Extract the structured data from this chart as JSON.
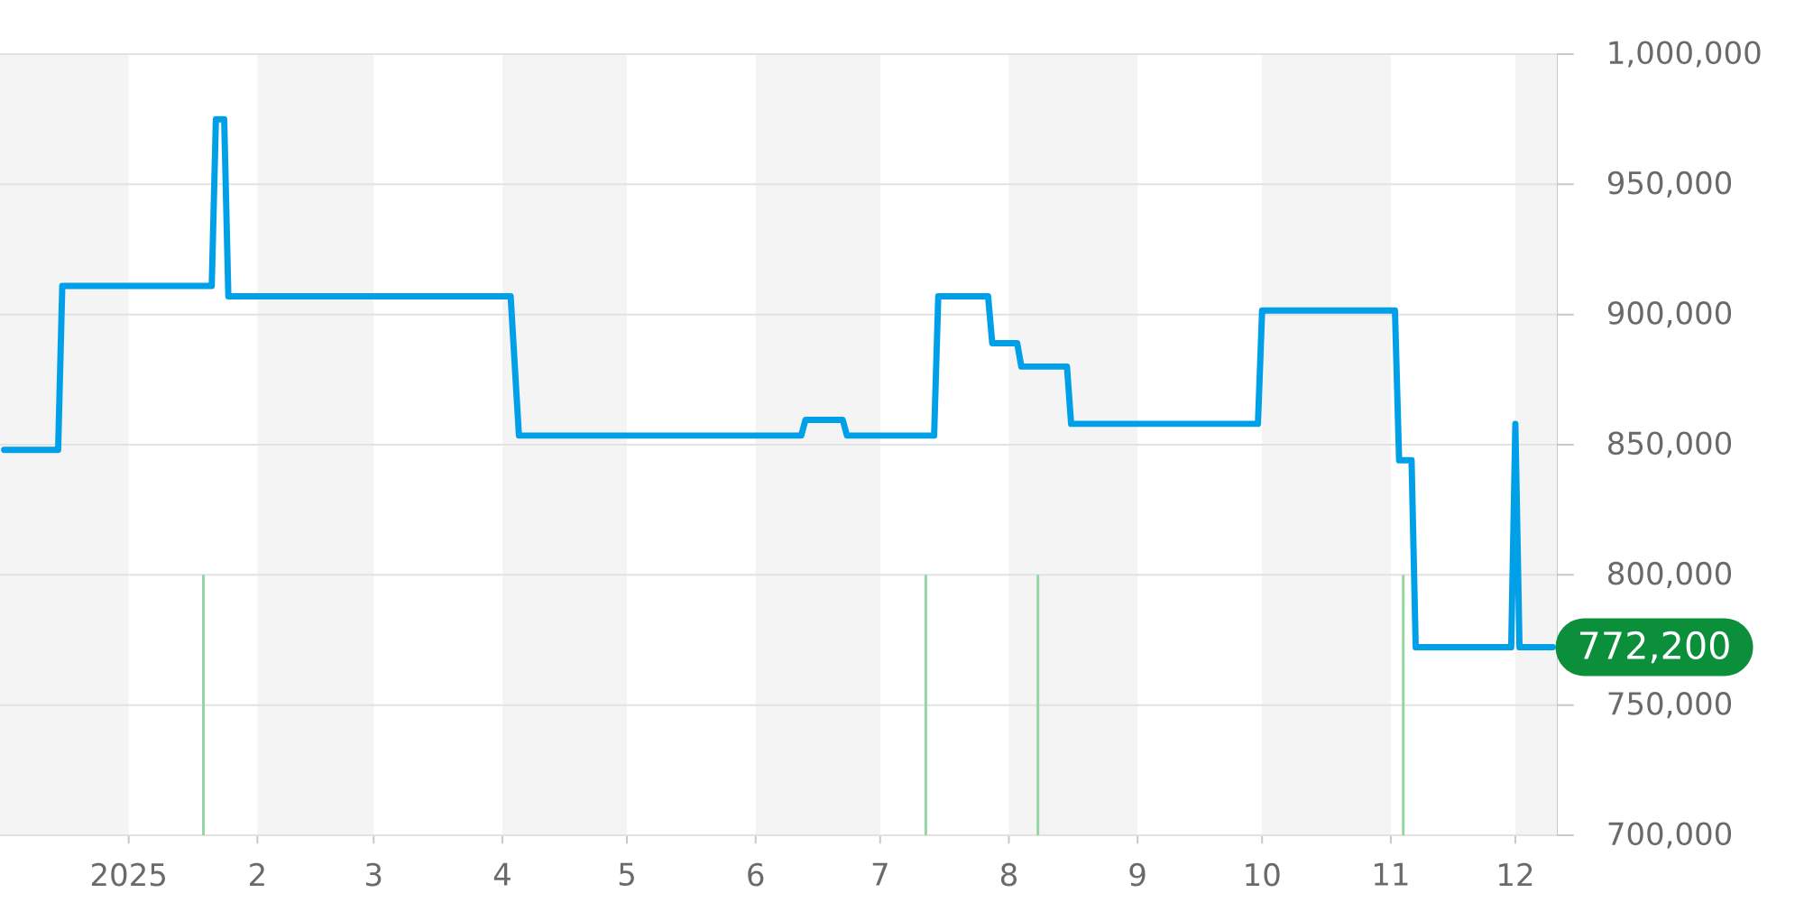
{
  "chart_data": {
    "type": "line",
    "x": [
      "2024-12-02",
      "2024-12-15",
      "2024-12-16",
      "2025-01-21",
      "2025-01-22",
      "2025-01-24",
      "2025-01-25",
      "2025-04-03",
      "2025-04-05",
      "2025-06-12",
      "2025-06-13",
      "2025-06-22",
      "2025-06-23",
      "2025-07-14",
      "2025-07-15",
      "2025-07-27",
      "2025-07-28",
      "2025-08-03",
      "2025-08-04",
      "2025-08-15",
      "2025-08-16",
      "2025-09-30",
      "2025-10-01",
      "2025-11-02",
      "2025-11-03",
      "2025-11-06",
      "2025-11-07",
      "2025-11-30",
      "2025-12-01",
      "2025-12-02",
      "2025-12-10"
    ],
    "series": [
      {
        "color": "#00a0e9",
        "values": [
          848000,
          848000,
          911000,
          911000,
          975000,
          975000,
          907000,
          907000,
          853500,
          853500,
          859500,
          859500,
          853500,
          853500,
          907000,
          907000,
          889000,
          889000,
          880000,
          880000,
          858000,
          858000,
          901500,
          901500,
          844000,
          844000,
          772200,
          772200,
          858000,
          772200,
          772200
        ]
      }
    ],
    "xlim": [
      "2024-12-01",
      "2025-12-11"
    ],
    "xticks": [
      {
        "value": "2025-01-01",
        "label": "2025"
      },
      {
        "value": "2025-02-01",
        "label": "2"
      },
      {
        "value": "2025-03-01",
        "label": "3"
      },
      {
        "value": "2025-04-01",
        "label": "4"
      },
      {
        "value": "2025-05-01",
        "label": "5"
      },
      {
        "value": "2025-06-01",
        "label": "6"
      },
      {
        "value": "2025-07-01",
        "label": "7"
      },
      {
        "value": "2025-08-01",
        "label": "8"
      },
      {
        "value": "2025-09-01",
        "label": "9"
      },
      {
        "value": "2025-10-01",
        "label": "10"
      },
      {
        "value": "2025-11-01",
        "label": "11"
      },
      {
        "value": "2025-12-01",
        "label": "12"
      }
    ],
    "ylim": [
      700000,
      1000000
    ],
    "yticks": [
      {
        "value": 700000,
        "label": "700,000"
      },
      {
        "value": 750000,
        "label": "750,000"
      },
      {
        "value": 800000,
        "label": "800,000"
      },
      {
        "value": 850000,
        "label": "850,000"
      },
      {
        "value": 900000,
        "label": "900,000"
      },
      {
        "value": 950000,
        "label": "950,000"
      },
      {
        "value": 1000000,
        "label": "1,000,000"
      }
    ],
    "grid": "y",
    "bands": [
      {
        "axis": "x",
        "from": "2024-12-01",
        "to": "2025-01-01",
        "color": "#f4f4f4"
      },
      {
        "axis": "x",
        "from": "2025-02-01",
        "to": "2025-03-01",
        "color": "#f4f4f4"
      },
      {
        "axis": "x",
        "from": "2025-04-01",
        "to": "2025-05-01",
        "color": "#f4f4f4"
      },
      {
        "axis": "x",
        "from": "2025-06-01",
        "to": "2025-07-01",
        "color": "#f4f4f4"
      },
      {
        "axis": "x",
        "from": "2025-08-01",
        "to": "2025-09-01",
        "color": "#f4f4f4"
      },
      {
        "axis": "x",
        "from": "2025-10-01",
        "to": "2025-11-01",
        "color": "#f4f4f4"
      },
      {
        "axis": "x",
        "from": "2025-12-01",
        "to": "2025-12-11",
        "color": "#f4f4f4"
      }
    ],
    "ref_lines": [
      {
        "axis": "x",
        "value": "2025-01-19",
        "color": "#93d6a0"
      },
      {
        "axis": "x",
        "value": "2025-07-12",
        "color": "#93d6a0"
      },
      {
        "axis": "x",
        "value": "2025-08-08",
        "color": "#93d6a0"
      },
      {
        "axis": "x",
        "value": "2025-11-04",
        "color": "#93d6a0"
      }
    ],
    "annotations": [
      {
        "text": "772,200",
        "x": "2025-12-10",
        "y": 772200
      }
    ]
  }
}
